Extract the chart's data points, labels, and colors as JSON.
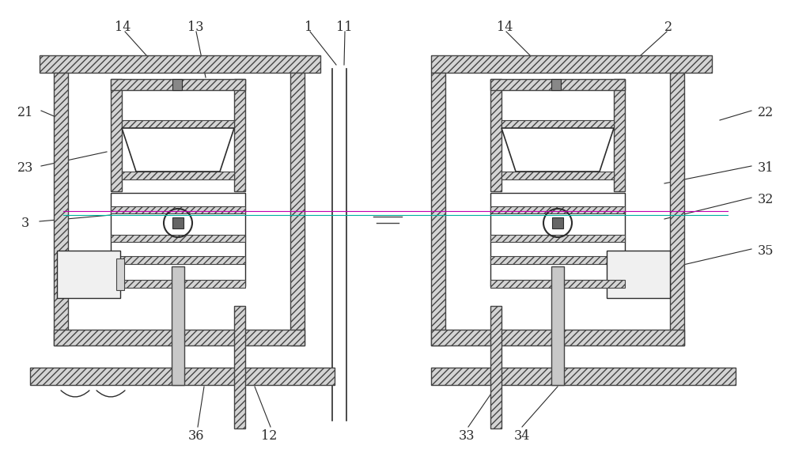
{
  "bg_color": "#ffffff",
  "lc": "#2c2c2c",
  "hatch_bg": "#d4d4d4",
  "fig_width": 10.0,
  "fig_height": 5.92,
  "dpi": 100
}
